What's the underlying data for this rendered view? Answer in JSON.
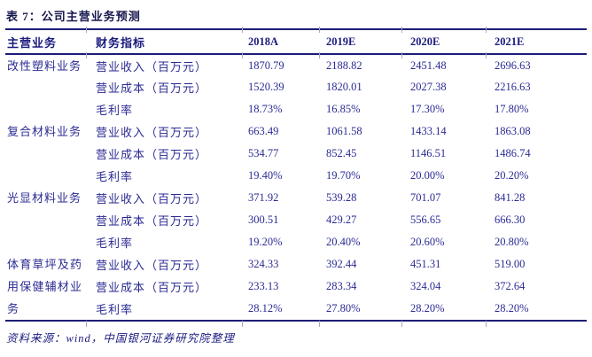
{
  "page": {
    "title": "表 7：公司主营业务预测",
    "footer": "资料来源：wind，中国银河证券研究院整理"
  },
  "table": {
    "columns": [
      "主营业务",
      "财务指标",
      "2018A",
      "2019E",
      "2020E",
      "2021E"
    ],
    "sections": [
      {
        "business": "改性塑料业务",
        "business_lines": [
          "改性塑料业务"
        ],
        "rows": [
          {
            "indicator": "营业收入（百万元）",
            "values": [
              "1870.79",
              "2188.82",
              "2451.48",
              "2696.63"
            ]
          },
          {
            "indicator": "营业成本（百万元）",
            "values": [
              "1520.39",
              "1820.01",
              "2027.38",
              "2216.63"
            ]
          },
          {
            "indicator": "毛利率",
            "values": [
              "18.73%",
              "16.85%",
              "17.30%",
              "17.80%"
            ]
          }
        ]
      },
      {
        "business": "复合材料业务",
        "business_lines": [
          "复合材料业务"
        ],
        "rows": [
          {
            "indicator": "营业收入（百万元）",
            "values": [
              "663.49",
              "1061.58",
              "1433.14",
              "1863.08"
            ]
          },
          {
            "indicator": "营业成本（百万元）",
            "values": [
              "534.77",
              "852.45",
              "1146.51",
              "1486.74"
            ]
          },
          {
            "indicator": "毛利率",
            "values": [
              "19.40%",
              "19.70%",
              "20.00%",
              "20.20%"
            ]
          }
        ]
      },
      {
        "business": "光显材料业务",
        "business_lines": [
          "光显材料业务"
        ],
        "rows": [
          {
            "indicator": "营业收入（百万元）",
            "values": [
              "371.92",
              "539.28",
              "701.07",
              "841.28"
            ]
          },
          {
            "indicator": "营业成本（百万元）",
            "values": [
              "300.51",
              "429.27",
              "556.65",
              "666.30"
            ]
          },
          {
            "indicator": "毛利率",
            "values": [
              "19.20%",
              "20.40%",
              "20.60%",
              "20.80%"
            ]
          }
        ]
      },
      {
        "business": "体育草坪及药用保健辅材业务",
        "business_lines": [
          "体育草坪及药",
          "用保健辅材业",
          "务"
        ],
        "rows": [
          {
            "indicator": "营业收入（百万元）",
            "values": [
              "324.33",
              "392.44",
              "451.31",
              "519.00"
            ]
          },
          {
            "indicator": "营业成本（百万元）",
            "values": [
              "233.13",
              "283.34",
              "324.04",
              "372.64"
            ]
          },
          {
            "indicator": "毛利率",
            "values": [
              "28.12%",
              "27.80%",
              "28.20%",
              "28.20%"
            ]
          }
        ]
      }
    ]
  },
  "colors": {
    "text_navy": "#2b2b94",
    "rule_navy": "#1c1c77",
    "title_navy": "#17174f"
  }
}
